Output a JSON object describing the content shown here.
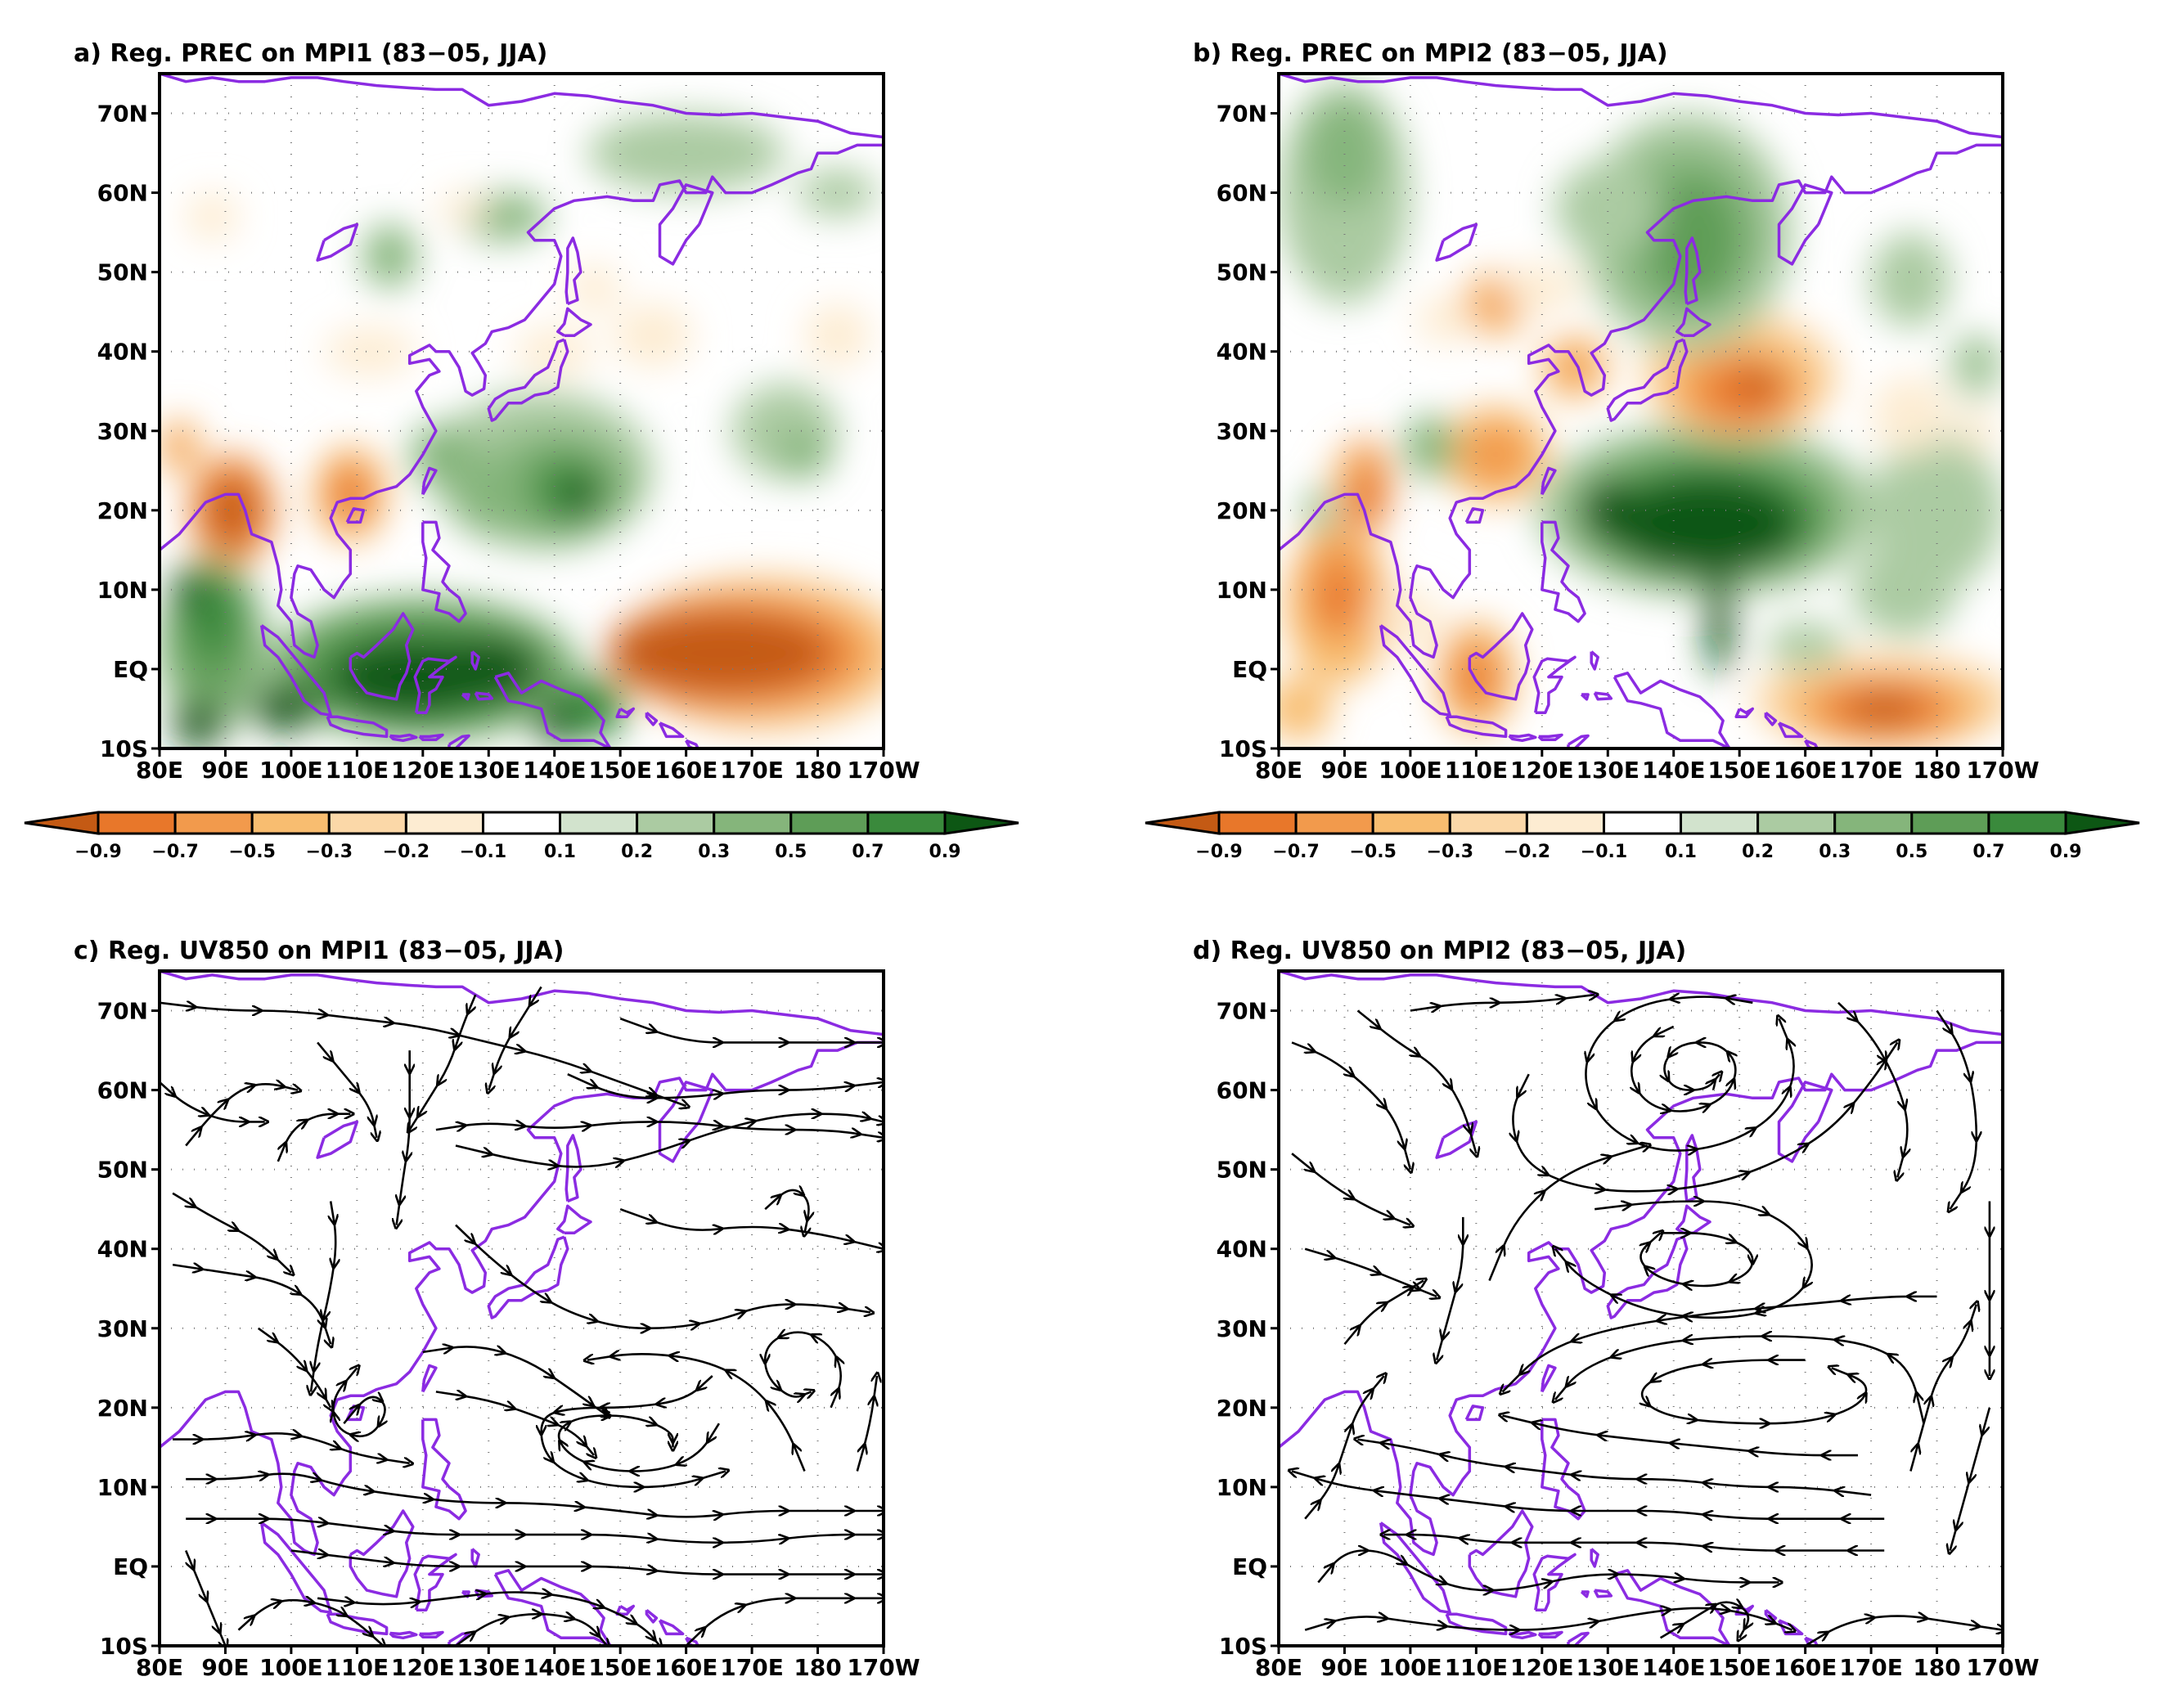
{
  "figure": {
    "panels": [
      {
        "id": "a",
        "title": "a) Reg. PREC on MPI1 (83−05, JJA)",
        "kind": "precipitation",
        "model": "MPI1"
      },
      {
        "id": "b",
        "title": "b) Reg. PREC on MPI2 (83−05, JJA)",
        "kind": "precipitation",
        "model": "MPI2"
      },
      {
        "id": "c",
        "title": "c) Reg. UV850 on MPI1 (83−05, JJA)",
        "kind": "streamlines",
        "model": "MPI1"
      },
      {
        "id": "d",
        "title": "d) Reg. UV850 on MPI2 (83−05, JJA)",
        "kind": "streamlines",
        "model": "MPI2"
      }
    ],
    "lat_labels": [
      "70N",
      "60N",
      "50N",
      "40N",
      "30N",
      "20N",
      "10N",
      "EQ",
      "10S"
    ],
    "lon_labels": [
      "80E",
      "90E",
      "100E",
      "110E",
      "120E",
      "130E",
      "140E",
      "150E",
      "160E",
      "170E",
      "180",
      "170W"
    ],
    "colorbar": {
      "labels": [
        "−0.9",
        "−0.7",
        "−0.5",
        "−0.3",
        "−0.2",
        "−0.1",
        "0.1",
        "0.2",
        "0.3",
        "0.5",
        "0.7",
        "0.9"
      ],
      "colors": [
        "#c45a14",
        "#e8772a",
        "#f29a4c",
        "#f8bd70",
        "#fbd8a8",
        "#fdecd2",
        "#ffffff",
        "#d2e3cd",
        "#abcba2",
        "#85b57b",
        "#5e9d57",
        "#3a8a3c",
        "#0d5714"
      ]
    },
    "coast_color": "#8b2be2"
  },
  "chart_data": [
    {
      "type": "heatmap",
      "panel": "a",
      "title": "a) Reg. PREC on MPI1 (83−05, JJA)",
      "variable": "precipitation regression",
      "xlim": [
        80,
        190
      ],
      "ylim": [
        -10,
        75
      ],
      "xlabel": "",
      "ylabel": "",
      "levels": [
        -0.9,
        -0.7,
        -0.5,
        -0.3,
        -0.2,
        -0.1,
        0.1,
        0.2,
        0.3,
        0.5,
        0.7,
        0.9
      ],
      "features": [
        {
          "lon": 170,
          "lat": 2,
          "sign": "negative",
          "value": -0.9
        },
        {
          "lon": 91,
          "lat": 20,
          "sign": "negative",
          "value": -0.9
        },
        {
          "lon": 109,
          "lat": 21,
          "sign": "negative",
          "value": -0.7
        },
        {
          "lon": 142,
          "lat": 23,
          "sign": "positive",
          "value": 0.9
        },
        {
          "lon": 120,
          "lat": 0,
          "sign": "positive",
          "value": 0.9
        },
        {
          "lon": 88,
          "lat": 5,
          "sign": "positive",
          "value": 0.7
        }
      ]
    },
    {
      "type": "heatmap",
      "panel": "b",
      "title": "b) Reg. PREC on MPI2 (83−05, JJA)",
      "variable": "precipitation regression",
      "xlim": [
        80,
        190
      ],
      "ylim": [
        -10,
        75
      ],
      "xlabel": "",
      "ylabel": "",
      "levels": [
        -0.9,
        -0.7,
        -0.5,
        -0.3,
        -0.2,
        -0.1,
        0.1,
        0.2,
        0.3,
        0.5,
        0.7,
        0.9
      ],
      "features": [
        {
          "lon": 145,
          "lat": 20,
          "sign": "positive",
          "value": 0.9
        },
        {
          "lon": 143,
          "lat": 55,
          "sign": "positive",
          "value": 0.5
        },
        {
          "lon": 150,
          "lat": 35,
          "sign": "negative",
          "value": -0.7
        },
        {
          "lon": 173,
          "lat": -5,
          "sign": "negative",
          "value": -0.9
        },
        {
          "lon": 110,
          "lat": -1,
          "sign": "negative",
          "value": -0.7
        },
        {
          "lon": 89,
          "lat": 10,
          "sign": "negative",
          "value": -0.7
        }
      ]
    },
    {
      "type": "scatter",
      "panel": "c",
      "title": "c) Reg. UV850 on MPI1 (83−05, JJA)",
      "variable": "850 hPa wind streamlines",
      "xlim": [
        80,
        190
      ],
      "ylim": [
        -10,
        75
      ],
      "circulation_centers": [
        {
          "lon": 150,
          "lat": 15,
          "type": "anticyclonic"
        },
        {
          "lon": 110,
          "lat": 20,
          "type": "cyclonic"
        },
        {
          "lon": 177,
          "lat": 25,
          "type": "cyclonic"
        }
      ]
    },
    {
      "type": "scatter",
      "panel": "d",
      "title": "d) Reg. UV850 on MPI2 (83−05, JJA)",
      "variable": "850 hPa wind streamlines",
      "xlim": [
        80,
        190
      ],
      "ylim": [
        -10,
        75
      ],
      "circulation_centers": [
        {
          "lon": 143,
          "lat": 62,
          "type": "cyclonic"
        },
        {
          "lon": 143,
          "lat": 38,
          "type": "anticyclonic"
        },
        {
          "lon": 150,
          "lat": 20,
          "type": "cyclonic"
        }
      ]
    }
  ]
}
